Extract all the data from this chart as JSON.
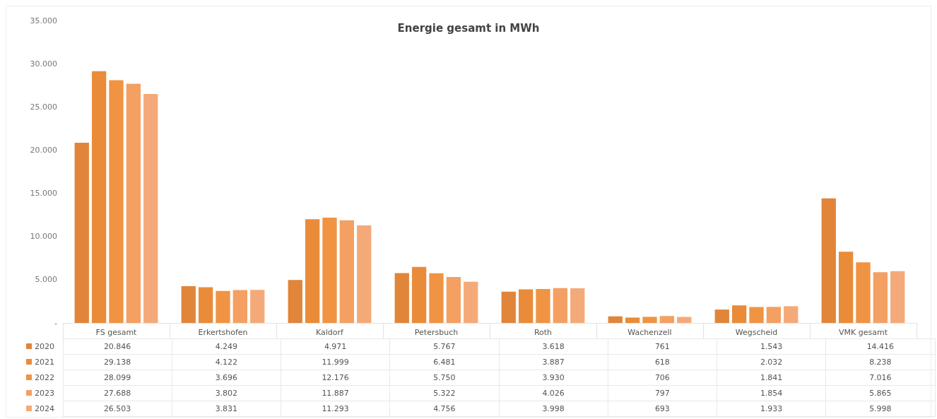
{
  "chart_data": {
    "type": "bar",
    "title": "Energie gesamt in MWh",
    "categories": [
      "FS gesamt",
      "Erkertshofen",
      "Kaldorf",
      "Petersbuch",
      "Roth",
      "Wachenzell",
      "Wegscheid",
      "VMK gesamt"
    ],
    "series": [
      {
        "name": "2020",
        "color": "#e0853a",
        "values": [
          20846,
          4249,
          4971,
          5767,
          3618,
          761,
          1543,
          14416
        ],
        "value_labels": [
          "20.846",
          "4.249",
          "4.971",
          "5.767",
          "3.618",
          "761",
          "1.543",
          "14.416"
        ]
      },
      {
        "name": "2021",
        "color": "#ea8b3a",
        "values": [
          29138,
          4122,
          11999,
          6481,
          3887,
          618,
          2032,
          8238
        ],
        "value_labels": [
          "29.138",
          "4.122",
          "11.999",
          "6.481",
          "3.887",
          "618",
          "2.032",
          "8.238"
        ]
      },
      {
        "name": "2022",
        "color": "#f09443",
        "values": [
          28099,
          3696,
          12176,
          5750,
          3930,
          706,
          1841,
          7016
        ],
        "value_labels": [
          "28.099",
          "3.696",
          "12.176",
          "5.750",
          "3.930",
          "706",
          "1.841",
          "7.016"
        ]
      },
      {
        "name": "2023",
        "color": "#f3a062",
        "values": [
          27688,
          3802,
          11887,
          5322,
          4026,
          797,
          1854,
          5865
        ],
        "value_labels": [
          "27.688",
          "3.802",
          "11.887",
          "5.322",
          "4.026",
          "797",
          "1.854",
          "5.865"
        ]
      },
      {
        "name": "2024",
        "color": "#f4aa78",
        "values": [
          26503,
          3831,
          11293,
          4756,
          3998,
          693,
          1933,
          5998
        ],
        "value_labels": [
          "26.503",
          "3.831",
          "11.293",
          "4.756",
          "3.998",
          "693",
          "1.933",
          "5.998"
        ]
      }
    ],
    "ylim": [
      0,
      35000
    ],
    "yticks": [
      {
        "value": 0,
        "label": "-"
      },
      {
        "value": 5000,
        "label": "5.000"
      },
      {
        "value": 10000,
        "label": "10.000"
      },
      {
        "value": 15000,
        "label": "15.000"
      },
      {
        "value": 20000,
        "label": "20.000"
      },
      {
        "value": 25000,
        "label": "25.000"
      },
      {
        "value": 30000,
        "label": "30.000"
      },
      {
        "value": 35000,
        "label": "35.000"
      }
    ],
    "grid": false,
    "legend": "bottom left"
  }
}
